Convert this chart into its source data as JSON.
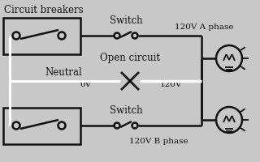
{
  "bg_color": "#c8c8c8",
  "line_color": "#111111",
  "white_line_color": "#ffffff",
  "title": "Circuit breakers",
  "switch_label": "Switch",
  "switch_label2": "Switch",
  "neutral_label": "Neutral",
  "open_circuit_label": "Open circuit",
  "phase_a_label": "120V A phase",
  "phase_b_label": "120V B phase",
  "ov_label": "0V",
  "v120_label": "120V"
}
